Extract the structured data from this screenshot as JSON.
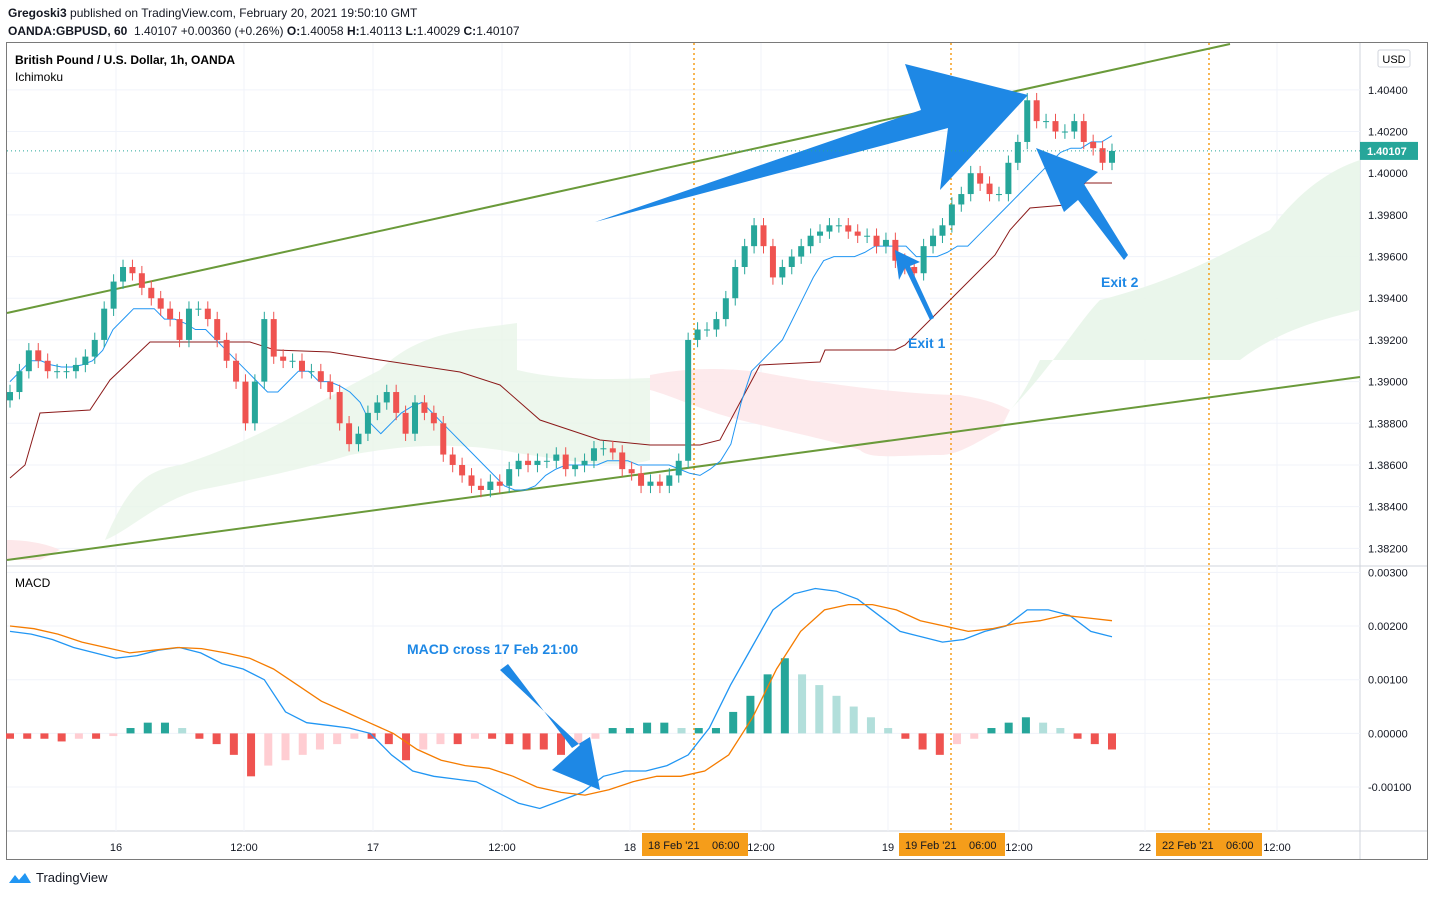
{
  "header": {
    "line1_user": "Gregoski3",
    "line1_rest": "published on TradingView.com, February 20, 2021 19:50:10 GMT",
    "line2_symbol": "OANDA:GBPUSD, 60",
    "line2_last": "1.40107",
    "line2_change": "+0.00360 (+0.26%)",
    "ohlc_o_label": "O:",
    "ohlc_o": "1.40058",
    "ohlc_h_label": "H:",
    "ohlc_h": "1.40113",
    "ohlc_l_label": "L:",
    "ohlc_l": "1.40029",
    "ohlc_c_label": "C:",
    "ohlc_c": "1.40107"
  },
  "price_pane": {
    "title": "British Pound / U.S. Dollar, 1h, OANDA",
    "indicator": "Ichimoku",
    "currency": "USD",
    "last_price_label": "1.40107"
  },
  "macd_pane": {
    "title": "MACD"
  },
  "annotations": {
    "exit1": "Exit 1",
    "exit2": "Exit 2",
    "macd_cross": "MACD cross 17 Feb 21:00"
  },
  "footer": {
    "brand": "TradingView"
  },
  "colors": {
    "bull": "#26a69a",
    "bear": "#ef5350",
    "trendline": "#6a9a3a",
    "annotation_arrow": "#1e88e5",
    "tenkan": "#2196f3",
    "kijun": "#8b1a1a",
    "macd_line": "#2196f3",
    "signal_line": "#f57c00",
    "hist_bull_strong": "#26a69a",
    "hist_bull_weak": "#b2dfdb",
    "hist_bear_strong": "#ef5350",
    "hist_bear_weak": "#ffcdd2",
    "event_line": "#f59d1a",
    "time_badge": "#f59d1a"
  },
  "chart_data": [
    {
      "type": "candlestick",
      "title": "British Pound / U.S. Dollar, 1h, OANDA",
      "y_ticks": [
        1.382,
        1.384,
        1.386,
        1.388,
        1.39,
        1.392,
        1.394,
        1.396,
        1.398,
        1.4,
        1.402,
        1.404
      ],
      "y_tick_labels": [
        "1.38200",
        "1.38400",
        "1.38600",
        "1.38800",
        "1.39000",
        "1.39200",
        "1.39400",
        "1.39600",
        "1.39800",
        "1.40000",
        "1.40200",
        "1.40400"
      ],
      "ylim": [
        1.3812,
        1.4062
      ],
      "x_tick_labels": [
        "16",
        "12:00",
        "17",
        "12:00",
        "18",
        "18 Feb '21",
        "06:00",
        "12:00",
        "19",
        "19 Feb '21",
        "06:00",
        "12:00",
        "22",
        "22 Feb '21",
        "06:00",
        "12:00"
      ],
      "last_price": 1.40107,
      "candles_close": [
        1.3895,
        1.3905,
        1.3915,
        1.391,
        1.3905,
        1.3905,
        1.3905,
        1.3908,
        1.3912,
        1.392,
        1.3935,
        1.3948,
        1.3955,
        1.3952,
        1.3945,
        1.394,
        1.3935,
        1.393,
        1.392,
        1.3935,
        1.3935,
        1.393,
        1.392,
        1.391,
        1.39,
        1.388,
        1.39,
        1.393,
        1.3912,
        1.391,
        1.391,
        1.3905,
        1.3905,
        1.39,
        1.3895,
        1.388,
        1.387,
        1.3875,
        1.3885,
        1.389,
        1.3895,
        1.3885,
        1.3875,
        1.389,
        1.3885,
        1.388,
        1.3865,
        1.386,
        1.3855,
        1.385,
        1.3848,
        1.3852,
        1.385,
        1.3858,
        1.3862,
        1.386,
        1.3862,
        1.3862,
        1.3865,
        1.3858,
        1.386,
        1.3862,
        1.3868,
        1.3868,
        1.3866,
        1.3858,
        1.3856,
        1.385,
        1.3852,
        1.385,
        1.3855,
        1.3862,
        1.392,
        1.3925,
        1.3925,
        1.393,
        1.394,
        1.3955,
        1.3965,
        1.3975,
        1.3965,
        1.395,
        1.3955,
        1.396,
        1.3965,
        1.397,
        1.3972,
        1.3975,
        1.3975,
        1.3972,
        1.397,
        1.397,
        1.3965,
        1.3968,
        1.3958,
        1.3955,
        1.3952,
        1.3965,
        1.397,
        1.3975,
        1.3985,
        1.399,
        1.4,
        1.3995,
        1.399,
        1.399,
        1.4005,
        1.4015,
        1.4035,
        1.4025,
        1.4025,
        1.402,
        1.402,
        1.4025,
        1.4015,
        1.4012,
        1.4005,
        1.40107
      ],
      "tenkan_approx": [
        1.39,
        1.3905,
        1.391,
        1.391,
        1.3908,
        1.3907,
        1.3907,
        1.3908,
        1.391,
        1.3915,
        1.3925,
        1.393,
        1.3935,
        1.3935,
        1.3935,
        1.393,
        1.393,
        1.3928,
        1.3925,
        1.3925,
        1.392,
        1.3915,
        1.391,
        1.3905,
        1.39,
        1.3895,
        1.3895,
        1.39,
        1.3905,
        1.3905,
        1.39,
        1.39,
        1.3898,
        1.3895,
        1.389,
        1.388,
        1.3875,
        1.388,
        1.3885,
        1.3888,
        1.389,
        1.3885,
        1.388,
        1.3875,
        1.387,
        1.3865,
        1.386,
        1.3855,
        1.385,
        1.3848,
        1.3848,
        1.385,
        1.3855,
        1.3858,
        1.386,
        1.386,
        1.386,
        1.386,
        1.3862,
        1.3862,
        1.3862,
        1.386,
        1.386,
        1.386,
        1.386,
        1.3858,
        1.3856,
        1.3855,
        1.3858,
        1.3862,
        1.387,
        1.389,
        1.3905,
        1.391,
        1.3915,
        1.392,
        1.393,
        1.394,
        1.395,
        1.3958,
        1.396,
        1.396,
        1.396,
        1.3962,
        1.3965,
        1.3965,
        1.3965,
        1.3965,
        1.396,
        1.396,
        1.396,
        1.3962,
        1.3965,
        1.3965,
        1.397,
        1.3975,
        1.398,
        1.3985,
        1.399,
        1.3995,
        1.4,
        1.4005,
        1.401,
        1.4012,
        1.4012,
        1.4015,
        1.4015,
        1.4018
      ]
    },
    {
      "type": "line",
      "title": "MACD",
      "y_ticks": [
        -0.001,
        0,
        0.001,
        0.002,
        0.003
      ],
      "y_tick_labels": [
        "-0.00100",
        "0.00000",
        "0.00100",
        "0.00200",
        "0.00300"
      ],
      "ylim": [
        -0.0018,
        0.0031
      ],
      "series": [
        {
          "role": "macd",
          "values": [
            0.0019,
            0.00185,
            0.00175,
            0.0016,
            0.0015,
            0.0014,
            0.00145,
            0.00155,
            0.0016,
            0.0015,
            0.0013,
            0.0012,
            0.001,
            0.0004,
            0.0002,
            0.00015,
            0.0001,
            0.0,
            -0.0004,
            -0.0007,
            -0.0008,
            -0.00085,
            -0.0009,
            -0.0011,
            -0.0013,
            -0.0014,
            -0.00125,
            -0.0011,
            -0.0008,
            -0.0007,
            -0.0007,
            -0.0006,
            -0.0004,
            0.0001,
            0.0009,
            0.0016,
            0.0023,
            0.0026,
            0.0027,
            0.00265,
            0.0025,
            0.0022,
            0.0019,
            0.0018,
            0.0017,
            0.00175,
            0.0019,
            0.002,
            0.0023,
            0.0023,
            0.0022,
            0.0019,
            0.0018
          ]
        },
        {
          "role": "signal",
          "values": [
            0.002,
            0.00195,
            0.00185,
            0.0017,
            0.0016,
            0.0015,
            0.00155,
            0.0016,
            0.00158,
            0.0015,
            0.0014,
            0.0012,
            0.0009,
            0.0006,
            0.0004,
            0.0002,
            0.0,
            -0.0003,
            -0.0005,
            -0.0006,
            -0.00065,
            -0.0008,
            -0.001,
            -0.0011,
            -0.00115,
            -0.00105,
            -0.0009,
            -0.0008,
            -0.0008,
            -0.0007,
            -0.0004,
            0.0003,
            0.0012,
            0.0019,
            0.0023,
            0.0024,
            0.0024,
            0.0023,
            0.0021,
            0.002,
            0.0019,
            0.00195,
            0.00205,
            0.0021,
            0.0022,
            0.00215,
            0.0021
          ]
        }
      ],
      "histogram": [
        -0.0001,
        -0.0001,
        -0.0001,
        -0.00015,
        -0.0001,
        -0.0001,
        -5e-05,
        0.0001,
        0.0002,
        0.0002,
        0.0001,
        -0.0001,
        -0.0002,
        -0.0004,
        -0.0008,
        -0.0006,
        -0.0005,
        -0.0004,
        -0.0003,
        -0.0002,
        -0.0001,
        -0.0001,
        -0.0002,
        -0.0005,
        -0.0003,
        -0.0002,
        -0.0002,
        -0.0001,
        -0.0001,
        -0.0002,
        -0.0003,
        -0.0003,
        -0.0004,
        -0.0002,
        -0.0001,
        0.0001,
        0.0001,
        0.0002,
        0.0002,
        0.0001,
        0.0001,
        0.0001,
        0.0004,
        0.0007,
        0.0011,
        0.0014,
        0.0011,
        0.0009,
        0.0007,
        0.0005,
        0.0003,
        0.0001,
        -0.0001,
        -0.0003,
        -0.0004,
        -0.0002,
        -0.0001,
        0.0001,
        0.0002,
        0.0003,
        0.0002,
        0.0001,
        -0.0001,
        -0.0002,
        -0.0003
      ]
    }
  ]
}
